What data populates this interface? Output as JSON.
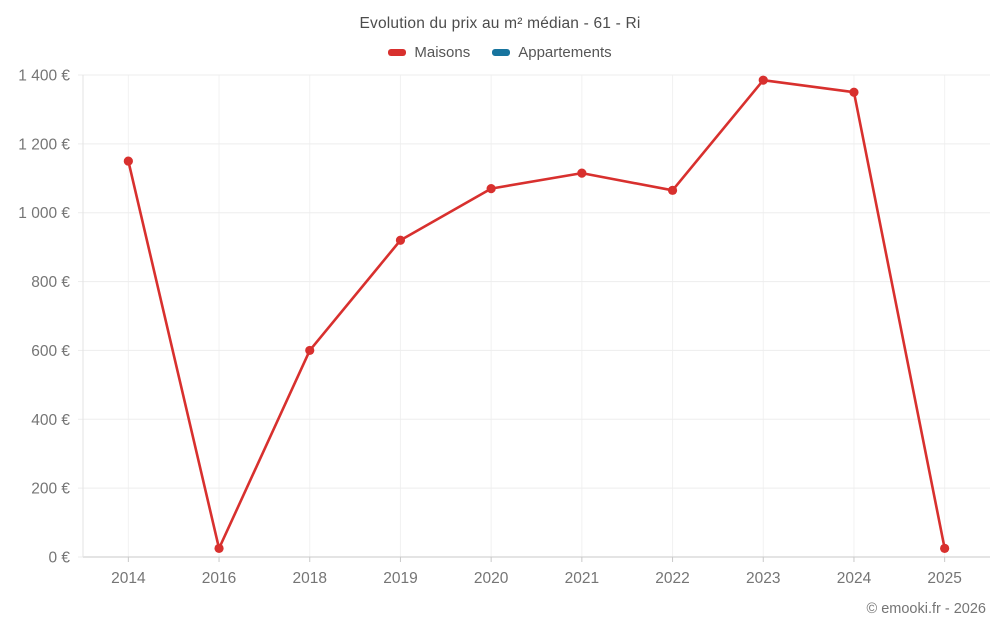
{
  "header": {
    "title": "Evolution du prix au m² médian - 61 - Ri"
  },
  "legend": [
    {
      "label": "Maisons",
      "color": "#d8302e"
    },
    {
      "label": "Appartements",
      "color": "#17749e"
    }
  ],
  "footer": {
    "credit": "© emooki.fr - 2026"
  },
  "colors": {
    "grid": "#ededed",
    "axis": "#c9c9c9",
    "tick_text": "#757575"
  },
  "chart_data": {
    "type": "line",
    "title": "Evolution du prix au m² médian - 61 - Ri",
    "categories": [
      "2014",
      "2016",
      "2018",
      "2019",
      "2020",
      "2021",
      "2022",
      "2023",
      "2024",
      "2025"
    ],
    "series": [
      {
        "name": "Maisons",
        "color": "#d8302e",
        "values": [
          1150,
          25,
          600,
          920,
          1070,
          1115,
          1065,
          1385,
          1350,
          25
        ]
      },
      {
        "name": "Appartements",
        "color": "#17749e",
        "values": []
      }
    ],
    "xlabel": "",
    "ylabel": "",
    "y_tick_format": "{value} €",
    "ylim": [
      0,
      1400
    ],
    "y_tick_step": 200,
    "grid": true,
    "legend_position": "top"
  }
}
